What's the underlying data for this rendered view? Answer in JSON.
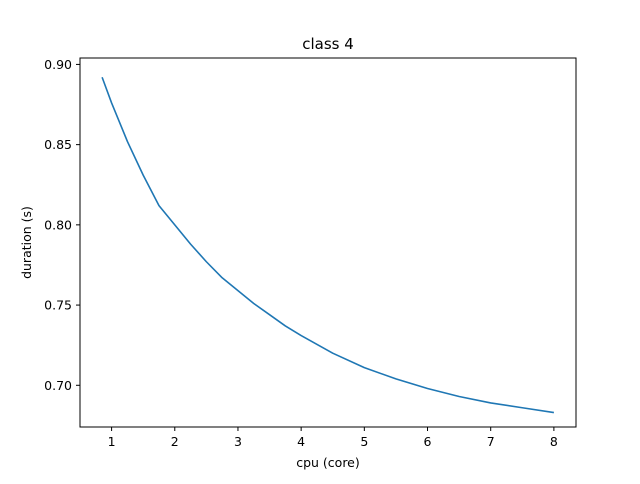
{
  "chart_data": {
    "type": "line",
    "title": "class 4",
    "xlabel": "cpu (core)",
    "ylabel": "duration (s)",
    "xlim": [
      0.5,
      8.35
    ],
    "ylim": [
      0.674,
      0.904
    ],
    "xticks": [
      1,
      2,
      3,
      4,
      5,
      6,
      7,
      8
    ],
    "yticks": [
      0.7,
      0.75,
      0.8,
      0.85,
      0.9
    ],
    "ytick_labels": [
      "0.70",
      "0.75",
      "0.80",
      "0.85",
      "0.90"
    ],
    "grid": false,
    "legend": "none",
    "colors": {
      "line": "#1f77b4",
      "axes": "#000000"
    },
    "series": [
      {
        "x": [
          0.85,
          1.0,
          1.25,
          1.5,
          1.75,
          2.0,
          2.25,
          2.5,
          2.75,
          3.0,
          3.25,
          3.5,
          3.75,
          4.0,
          4.5,
          5.0,
          5.5,
          6.0,
          6.5,
          7.0,
          7.5,
          8.0
        ],
        "values": [
          0.892,
          0.876,
          0.852,
          0.831,
          0.812,
          0.8,
          0.788,
          0.777,
          0.767,
          0.759,
          0.751,
          0.744,
          0.737,
          0.731,
          0.72,
          0.711,
          0.704,
          0.698,
          0.693,
          0.689,
          0.686,
          0.683
        ]
      }
    ]
  }
}
